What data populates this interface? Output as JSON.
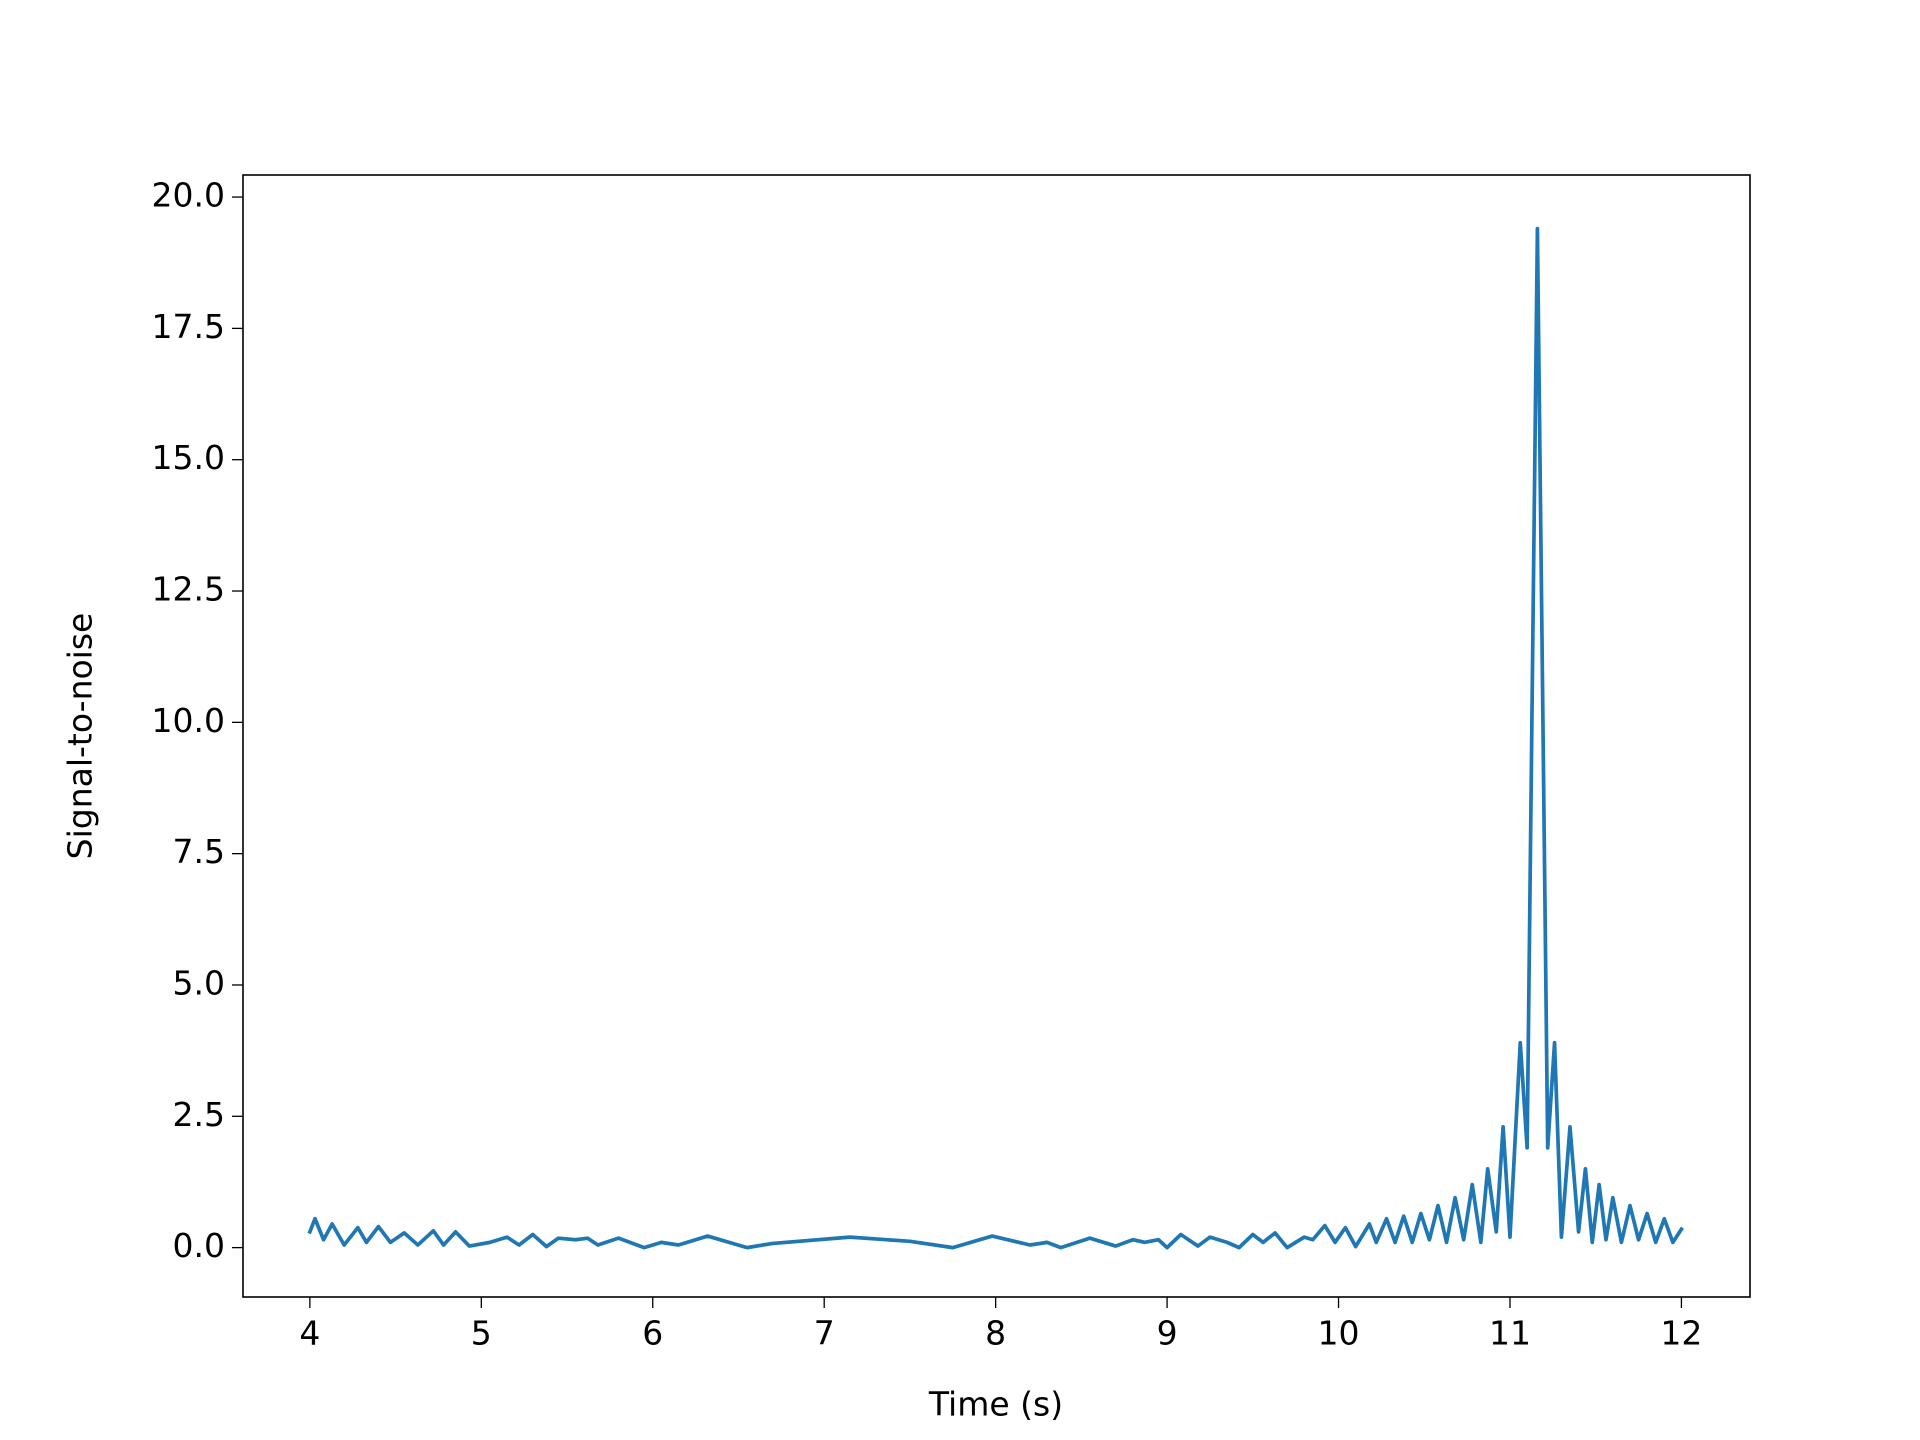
{
  "chart_data": {
    "type": "line",
    "xlabel": "Time (s)",
    "ylabel": "Signal-to-noise",
    "color": "#1f77b4",
    "x": [
      4.0,
      4.03,
      4.08,
      4.13,
      4.2,
      4.28,
      4.33,
      4.4,
      4.47,
      4.55,
      4.63,
      4.72,
      4.78,
      4.85,
      4.93,
      5.05,
      5.15,
      5.22,
      5.3,
      5.38,
      5.45,
      5.55,
      5.62,
      5.68,
      5.8,
      5.95,
      6.05,
      6.15,
      6.32,
      6.55,
      6.7,
      7.15,
      7.5,
      7.75,
      7.98,
      8.2,
      8.3,
      8.38,
      8.55,
      8.7,
      8.8,
      8.87,
      8.95,
      9.0,
      9.08,
      9.18,
      9.25,
      9.35,
      9.42,
      9.5,
      9.56,
      9.63,
      9.7,
      9.8,
      9.85,
      9.92,
      9.98,
      10.04,
      10.1,
      10.18,
      10.22,
      10.28,
      10.33,
      10.38,
      10.43,
      10.48,
      10.53,
      10.58,
      10.63,
      10.68,
      10.73,
      10.78,
      10.83,
      10.87,
      10.92,
      10.96,
      11.0,
      11.06,
      11.1,
      11.16,
      11.22,
      11.26,
      11.3,
      11.35,
      11.4,
      11.44,
      11.48,
      11.52,
      11.56,
      11.6,
      11.65,
      11.7,
      11.75,
      11.8,
      11.85,
      11.9,
      11.95,
      12.0
    ],
    "values": [
      0.3,
      0.55,
      0.15,
      0.45,
      0.05,
      0.38,
      0.1,
      0.4,
      0.1,
      0.28,
      0.05,
      0.32,
      0.05,
      0.3,
      0.03,
      0.1,
      0.2,
      0.05,
      0.25,
      0.02,
      0.18,
      0.15,
      0.18,
      0.05,
      0.18,
      0.0,
      0.1,
      0.05,
      0.22,
      0.0,
      0.08,
      0.2,
      0.12,
      0.0,
      0.22,
      0.05,
      0.1,
      0.0,
      0.18,
      0.03,
      0.15,
      0.1,
      0.15,
      0.0,
      0.25,
      0.03,
      0.2,
      0.1,
      0.0,
      0.25,
      0.1,
      0.28,
      0.0,
      0.2,
      0.15,
      0.42,
      0.1,
      0.38,
      0.02,
      0.45,
      0.1,
      0.55,
      0.1,
      0.6,
      0.1,
      0.65,
      0.15,
      0.8,
      0.1,
      0.95,
      0.15,
      1.2,
      0.1,
      1.5,
      0.3,
      2.3,
      0.2,
      3.9,
      1.9,
      19.4,
      1.9,
      3.9,
      0.2,
      2.3,
      0.3,
      1.5,
      0.1,
      1.2,
      0.15,
      0.95,
      0.1,
      0.8,
      0.15,
      0.65,
      0.1,
      0.55,
      0.1,
      0.35
    ],
    "xlim": [
      3.61,
      12.4
    ],
    "xticks": [
      4,
      5,
      6,
      7,
      8,
      9,
      10,
      11,
      12
    ],
    "ylim": [
      -0.94,
      20.42
    ],
    "yticks": [
      {
        "value": 0,
        "label": "0.0"
      },
      2.5,
      {
        "value": 5,
        "label": "5.0"
      },
      7.5,
      {
        "value": 10,
        "label": "10.0"
      },
      12.5,
      {
        "value": 15,
        "label": "15.0"
      },
      17.5,
      {
        "value": 20,
        "label": "20.0"
      }
    ],
    "grid": false
  }
}
